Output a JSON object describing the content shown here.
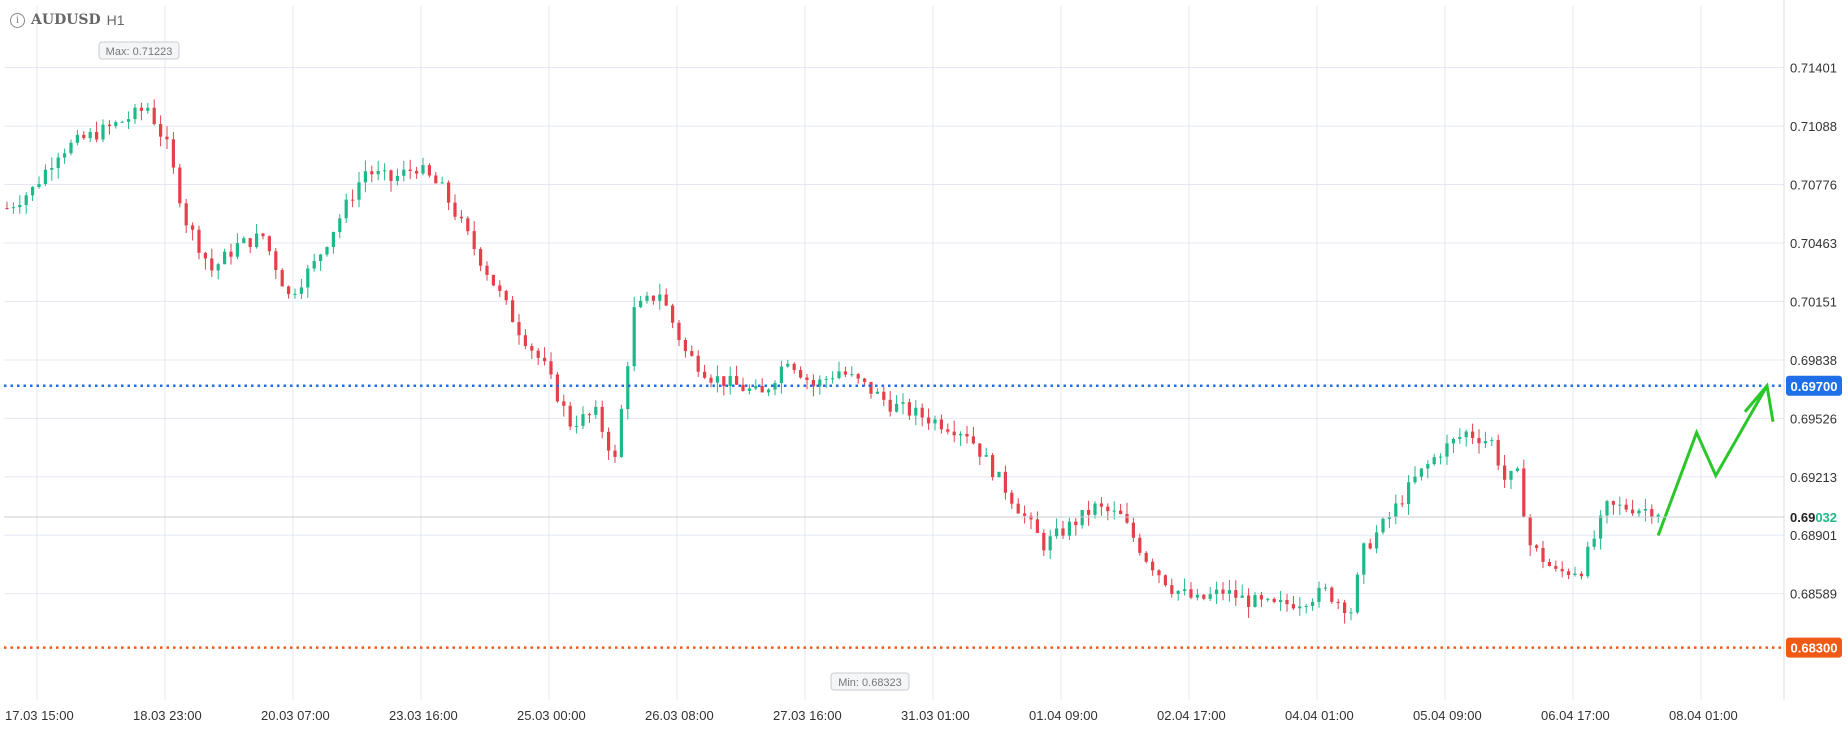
{
  "header": {
    "info_icon": "info-icon",
    "symbol": "AUDUSD",
    "timeframe": "H1"
  },
  "chart_data": {
    "type": "candlestick",
    "y_ticks": [
      "0.71401",
      "0.71088",
      "0.70776",
      "0.70463",
      "0.70151",
      "0.69838",
      "0.69526",
      "0.69213",
      "0.68901",
      "0.68589"
    ],
    "y_range": [
      0.6817,
      0.7173
    ],
    "x_ticks": [
      "17.03 15:00",
      "18.03 23:00",
      "20.03 07:00",
      "23.03 16:00",
      "25.03 00:00",
      "26.03 08:00",
      "27.03 16:00",
      "31.03 01:00",
      "01.04 09:00",
      "02.04 17:00",
      "04.04 01:00",
      "05.04 09:00",
      "06.04 17:00",
      "08.04 01:00"
    ],
    "max_label": "Max: 0.71223",
    "min_label": "Min: 0.68323",
    "current_price": {
      "prefix": "0.69",
      "suffix": "032",
      "value": 0.69032
    },
    "levels": [
      {
        "value": 0.697,
        "label": "0.69700",
        "color": "#1e6fe8"
      },
      {
        "value": 0.683,
        "label": "0.68300",
        "color": "#f05a14"
      }
    ],
    "colors": {
      "up": "#1fb889",
      "down": "#e3404a",
      "grid": "#e4e8f4",
      "projection": "#2ac72a"
    },
    "price_path": [
      [
        0,
        0.7065
      ],
      [
        4,
        0.7075
      ],
      [
        8,
        0.7095
      ],
      [
        12,
        0.7102
      ],
      [
        16,
        0.7108
      ],
      [
        20,
        0.7115
      ],
      [
        22,
        0.7119
      ],
      [
        25,
        0.7098
      ],
      [
        28,
        0.7058
      ],
      [
        32,
        0.7032
      ],
      [
        36,
        0.7045
      ],
      [
        40,
        0.705
      ],
      [
        44,
        0.7018
      ],
      [
        48,
        0.7035
      ],
      [
        52,
        0.706
      ],
      [
        56,
        0.7085
      ],
      [
        60,
        0.708
      ],
      [
        64,
        0.7087
      ],
      [
        68,
        0.7075
      ],
      [
        72,
        0.705
      ],
      [
        76,
        0.7025
      ],
      [
        80,
        0.7
      ],
      [
        84,
        0.698
      ],
      [
        88,
        0.695
      ],
      [
        92,
        0.6955
      ],
      [
        95,
        0.693
      ],
      [
        98,
        0.701
      ],
      [
        102,
        0.702
      ],
      [
        106,
        0.6988
      ],
      [
        110,
        0.6975
      ],
      [
        114,
        0.697
      ],
      [
        118,
        0.6965
      ],
      [
        122,
        0.6985
      ],
      [
        126,
        0.697
      ],
      [
        130,
        0.6978
      ],
      [
        134,
        0.697
      ],
      [
        138,
        0.696
      ],
      [
        142,
        0.6955
      ],
      [
        146,
        0.695
      ],
      [
        150,
        0.6945
      ],
      [
        154,
        0.6925
      ],
      [
        158,
        0.6905
      ],
      [
        162,
        0.6885
      ],
      [
        166,
        0.6895
      ],
      [
        170,
        0.6905
      ],
      [
        174,
        0.69
      ],
      [
        178,
        0.6878
      ],
      [
        182,
        0.6862
      ],
      [
        186,
        0.6855
      ],
      [
        190,
        0.686
      ],
      [
        194,
        0.6855
      ],
      [
        198,
        0.6852
      ],
      [
        202,
        0.6855
      ],
      [
        206,
        0.686
      ],
      [
        210,
        0.685
      ],
      [
        212,
        0.6882
      ],
      [
        216,
        0.69
      ],
      [
        220,
        0.692
      ],
      [
        224,
        0.6935
      ],
      [
        228,
        0.6945
      ],
      [
        232,
        0.694
      ],
      [
        234,
        0.692
      ],
      [
        236,
        0.6922
      ],
      [
        238,
        0.6885
      ],
      [
        242,
        0.687
      ],
      [
        246,
        0.6872
      ],
      [
        250,
        0.6905
      ],
      [
        254,
        0.6905
      ],
      [
        258,
        0.6903
      ]
    ],
    "projection": [
      [
        258,
        0.689
      ],
      [
        264,
        0.6945
      ],
      [
        267,
        0.6922
      ],
      [
        275,
        0.697
      ]
    ]
  }
}
